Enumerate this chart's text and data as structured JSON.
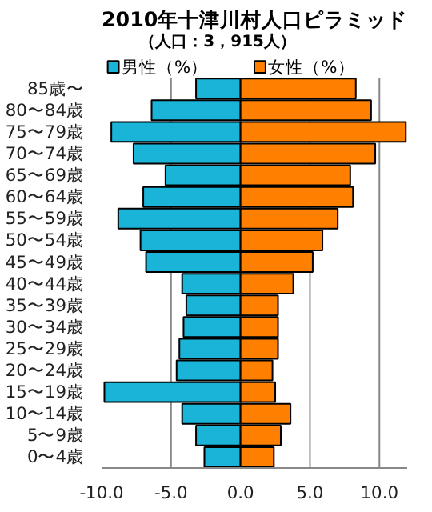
{
  "chart_data": {
    "type": "bar",
    "orientation": "horizontal",
    "title": "2010年十津川村人口ピラミッド",
    "subtitle": "（人口：3，915人）",
    "categories": [
      "85歳〜",
      "80〜84歳",
      "75〜79歳",
      "70〜74歳",
      "65〜69歳",
      "60〜64歳",
      "55〜59歳",
      "50〜54歳",
      "45〜49歳",
      "40〜44歳",
      "35〜39歳",
      "30〜34歳",
      "25〜29歳",
      "20〜24歳",
      "15〜19歳",
      "10〜14歳",
      "5〜9歳",
      "0〜4歳"
    ],
    "series": [
      {
        "name": "男性（%）",
        "color": "#1ab4d8",
        "values": [
          -3.2,
          -6.4,
          -9.3,
          -7.7,
          -5.4,
          -7.0,
          -8.8,
          -7.2,
          -6.8,
          -4.2,
          -3.9,
          -4.1,
          -4.4,
          -4.6,
          -9.8,
          -4.2,
          -3.2,
          -2.6
        ]
      },
      {
        "name": "女性（%）",
        "color": "#ff8000",
        "values": [
          8.3,
          9.4,
          11.9,
          9.7,
          7.9,
          8.1,
          7.0,
          5.9,
          5.2,
          3.8,
          2.7,
          2.7,
          2.7,
          2.3,
          2.5,
          3.6,
          2.9,
          2.4
        ]
      }
    ],
    "xlim": [
      -10,
      12
    ],
    "xticks": [
      {
        "value": -10,
        "label": "-10.0"
      },
      {
        "value": -5,
        "label": "-5.0"
      },
      {
        "value": 0,
        "label": "0.0"
      },
      {
        "value": 5,
        "label": "5.0"
      },
      {
        "value": 10,
        "label": "10.0"
      }
    ],
    "grid": "x",
    "legend": "top",
    "stacked": true
  }
}
